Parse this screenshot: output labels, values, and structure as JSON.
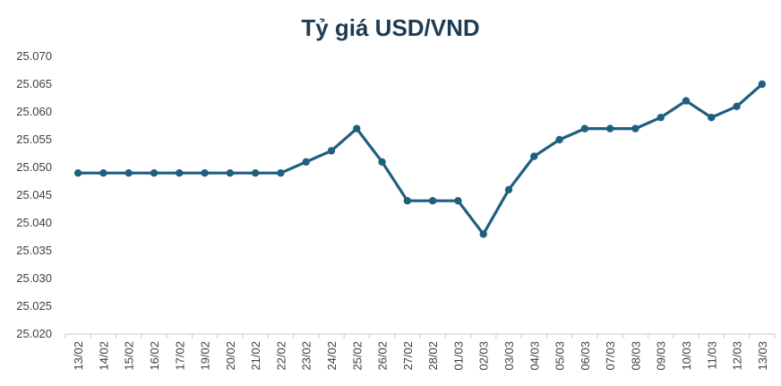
{
  "chart_data": {
    "type": "line",
    "title": "Tỷ giá USD/VND",
    "xlabel": "",
    "ylabel": "",
    "ylim": [
      25020,
      25070
    ],
    "yticks": [
      "25.020",
      "25.025",
      "25.030",
      "25.035",
      "25.040",
      "25.045",
      "25.050",
      "25.055",
      "25.060",
      "25.065",
      "25.070"
    ],
    "ytick_values": [
      25020,
      25025,
      25030,
      25035,
      25040,
      25045,
      25050,
      25055,
      25060,
      25065,
      25070
    ],
    "categories": [
      "13/02",
      "14/02",
      "15/02",
      "16/02",
      "17/02",
      "19/02",
      "20/02",
      "21/02",
      "22/02",
      "23/02",
      "24/02",
      "25/02",
      "26/02",
      "27/02",
      "28/02",
      "01/03",
      "02/03",
      "03/03",
      "04/03",
      "05/03",
      "06/03",
      "07/03",
      "08/03",
      "09/03",
      "10/03",
      "11/03",
      "12/03",
      "13/03"
    ],
    "series": [
      {
        "name": "USD/VND",
        "color": "#1f5f80",
        "values": [
          25049,
          25049,
          25049,
          25049,
          25049,
          25049,
          25049,
          25049,
          25049,
          25051,
          25053,
          25057,
          25051,
          25044,
          25044,
          25044,
          25038,
          25046,
          25052,
          25055,
          25057,
          25057,
          25057,
          25059,
          25062,
          25059,
          25061,
          25065
        ]
      }
    ],
    "grid": false,
    "legend": "none"
  }
}
